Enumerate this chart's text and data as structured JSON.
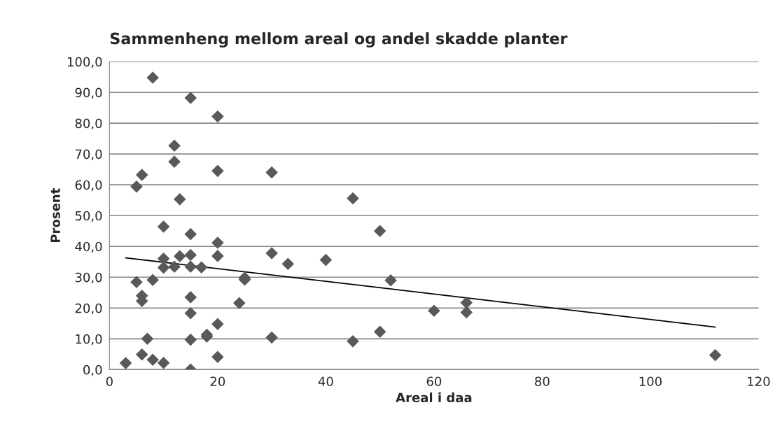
{
  "chart_data": {
    "type": "scatter",
    "title": "Sammenheng mellom areal og andel skadde planter",
    "xlabel": "Areal i daa",
    "ylabel": "Prosent",
    "series": [
      {
        "color": "#595959",
        "marker": "diamond",
        "x": [
          8,
          15,
          20,
          12,
          12,
          20,
          30,
          6,
          5,
          13,
          45,
          10,
          50,
          15,
          20,
          30,
          15,
          13,
          20,
          10,
          40,
          33,
          12,
          15,
          17,
          10,
          25,
          25,
          52,
          5,
          8,
          6,
          6,
          15,
          24,
          66,
          60,
          66,
          15,
          20,
          18,
          18,
          50,
          30,
          7,
          15,
          45,
          6,
          20,
          112,
          8,
          10,
          3,
          15
        ],
        "values": [
          94.8,
          88.2,
          82.2,
          72.7,
          67.5,
          64.5,
          64.0,
          63.2,
          59.4,
          55.3,
          55.6,
          46.4,
          45.0,
          44.0,
          41.2,
          37.8,
          37.2,
          36.8,
          36.9,
          36.0,
          35.6,
          34.3,
          33.4,
          33.4,
          33.2,
          33.1,
          29.8,
          29.2,
          29.0,
          28.4,
          29.1,
          24.0,
          22.3,
          23.5,
          21.6,
          21.7,
          19.1,
          18.6,
          18.3,
          14.8,
          11.3,
          10.7,
          12.3,
          10.4,
          10.0,
          9.7,
          9.2,
          4.9,
          4.1,
          4.7,
          3.2,
          2.2,
          2.1,
          0.0
        ]
      },
      {
        "type": "line",
        "color": "#000000",
        "x": [
          3,
          112
        ],
        "values": [
          36.3,
          13.8
        ]
      }
    ],
    "xlim": [
      0,
      120
    ],
    "xticks": [
      0,
      20,
      40,
      60,
      80,
      100,
      120
    ],
    "ylim": [
      0,
      100
    ],
    "yticks": [
      {
        "value": 0,
        "label": "0,0"
      },
      {
        "value": 10,
        "label": "10,0"
      },
      {
        "value": 20,
        "label": "20,0"
      },
      {
        "value": 30,
        "label": "30,0"
      },
      {
        "value": 40,
        "label": "40,0"
      },
      {
        "value": 50,
        "label": "50,0"
      },
      {
        "value": 60,
        "label": "60,0"
      },
      {
        "value": 70,
        "label": "70,0"
      },
      {
        "value": 80,
        "label": "80,0"
      },
      {
        "value": 90,
        "label": "90,0"
      },
      {
        "value": 100,
        "label": "100,0"
      }
    ],
    "grid": "y",
    "legend": false
  }
}
